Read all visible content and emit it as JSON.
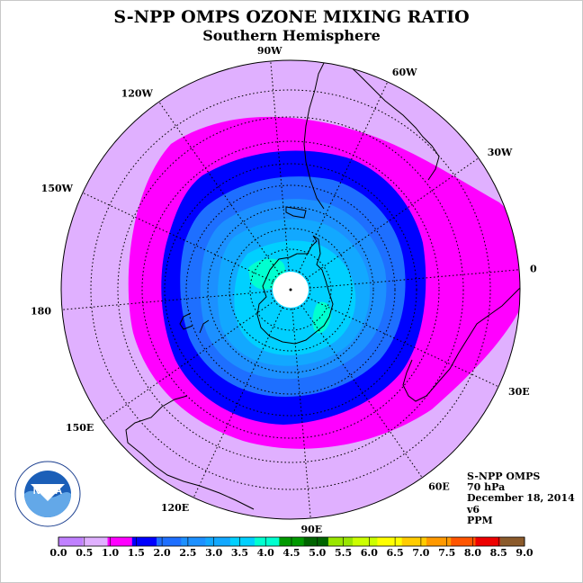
{
  "title": "S-NPP OMPS OZONE MIXING RATIO",
  "subtitle": "Southern Hemisphere",
  "longitude_labels": [
    "90W",
    "60W",
    "30W",
    "0",
    "30E",
    "60E",
    "90E",
    "120E",
    "150E",
    "180",
    "150W",
    "120W"
  ],
  "info": {
    "instrument": "S-NPP OMPS",
    "level": "70 hPa",
    "date": "December 18, 2014",
    "version": "v6",
    "units": "PPM"
  },
  "logo": {
    "text": "NOAA"
  },
  "colorbar": {
    "ticks": [
      "0.0",
      "0.5",
      "1.0",
      "1.5",
      "2.0",
      "2.5",
      "3.0",
      "3.5",
      "4.0",
      "4.5",
      "5.0",
      "5.5",
      "6.0",
      "6.5",
      "7.0",
      "7.5",
      "8.0",
      "8.5",
      "9.0"
    ],
    "colors": [
      "#c080ff",
      "#e0b0ff",
      "#ff00ff",
      "#0000ff",
      "#1e6fff",
      "#1c90ff",
      "#12a8ff",
      "#00d0ff",
      "#00ffd0",
      "#009900",
      "#006400",
      "#99e600",
      "#ccff00",
      "#ffff00",
      "#ffcc00",
      "#ff9900",
      "#ff5500",
      "#ee0000",
      "#8b5a2b"
    ]
  },
  "map": {
    "background_color": "#e0b0ff",
    "pole_color": "#ffffff",
    "contour_colors": [
      "#ff00ff",
      "#0000ff",
      "#1e6fff",
      "#1c90ff",
      "#12a8ff",
      "#00d0ff",
      "#00ffd0"
    ]
  }
}
